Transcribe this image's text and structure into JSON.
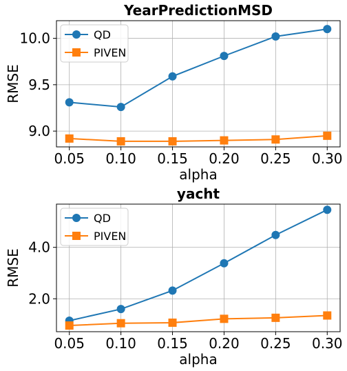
{
  "chart_data": [
    {
      "type": "line",
      "title": "YearPredictionMSD",
      "xlabel": "alpha",
      "ylabel": "RMSE",
      "x": [
        0.05,
        0.1,
        0.15,
        0.2,
        0.25,
        0.3
      ],
      "xtick_labels": [
        "0.05",
        "0.10",
        "0.15",
        "0.20",
        "0.25",
        "0.30"
      ],
      "ytick_values": [
        9.0,
        9.5,
        10.0
      ],
      "ytick_labels": [
        "9.0",
        "9.5",
        "10.0"
      ],
      "xlim": [
        0.0375,
        0.3125
      ],
      "ylim": [
        8.83,
        10.19
      ],
      "grid": true,
      "legend_position": "upper-left",
      "series": [
        {
          "name": "QD",
          "color": "#1f77b4",
          "marker": "circle",
          "values": [
            9.31,
            9.26,
            9.59,
            9.81,
            10.02,
            10.1
          ]
        },
        {
          "name": "PIVEN",
          "color": "#ff7f0e",
          "marker": "square",
          "values": [
            8.92,
            8.89,
            8.89,
            8.9,
            8.91,
            8.95
          ]
        }
      ]
    },
    {
      "type": "line",
      "title": "yacht",
      "xlabel": "alpha",
      "ylabel": "RMSE",
      "x": [
        0.05,
        0.1,
        0.15,
        0.2,
        0.25,
        0.3
      ],
      "xtick_labels": [
        "0.05",
        "0.10",
        "0.15",
        "0.20",
        "0.25",
        "0.30"
      ],
      "ytick_values": [
        2.0,
        4.0
      ],
      "ytick_labels": [
        "2.0",
        "4.0"
      ],
      "xlim": [
        0.0375,
        0.3125
      ],
      "ylim": [
        0.72,
        5.68
      ],
      "grid": true,
      "legend_position": "upper-left",
      "series": [
        {
          "name": "QD",
          "color": "#1f77b4",
          "marker": "circle",
          "values": [
            1.15,
            1.6,
            2.32,
            3.38,
            4.48,
            5.46
          ]
        },
        {
          "name": "PIVEN",
          "color": "#ff7f0e",
          "marker": "square",
          "values": [
            0.96,
            1.05,
            1.07,
            1.22,
            1.26,
            1.35
          ]
        }
      ]
    }
  ]
}
